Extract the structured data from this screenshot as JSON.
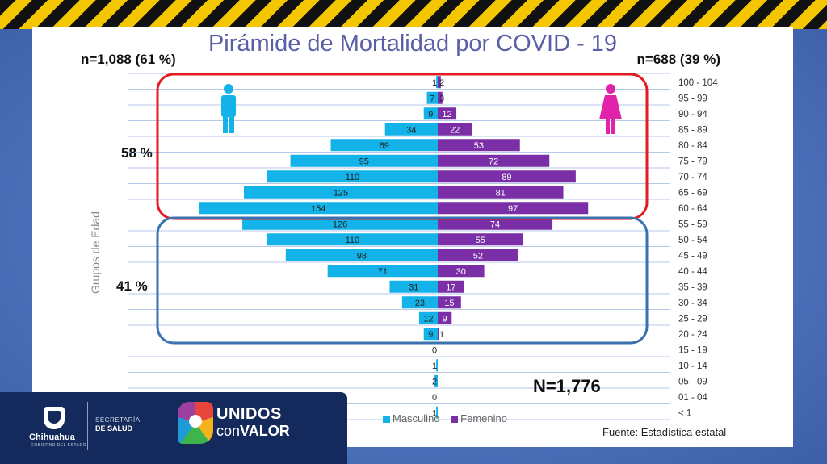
{
  "title": "Pirámide de Mortalidad por COVID - 19",
  "n_left": "n=1,088 (61 %)",
  "n_right": "n=688 (39 %)",
  "pct_upper": "58 %",
  "pct_lower": "41 %",
  "total": "N=1,776",
  "source": "Fuente: Estadística estatal",
  "colors": {
    "masculino": "#13b2e8",
    "femenino": "#7a2fa6",
    "red_box": "#e31b23",
    "blue_box": "#3a72b0",
    "male_icon": "#13b2e8",
    "female_icon": "#e023a8"
  },
  "icons": {
    "left": "male-icon",
    "right": "female-icon"
  },
  "footer": {
    "org": "Chihuahua",
    "org_sub": "GOBIERNO DEL ESTADO",
    "dept_line1": "SECRETARÍA",
    "dept_line2": "DE SALUD",
    "brand_line1": "UNIDOS",
    "brand_con": "con",
    "brand_valor": "VALOR"
  },
  "chart_data": {
    "type": "bar",
    "orientation": "horizontal-population-pyramid",
    "ylabel": "Grupos de Edad",
    "categories": [
      "100 - 104",
      "95 - 99",
      "90 - 94",
      "85 - 89",
      "80 - 84",
      "75 - 79",
      "70 - 74",
      "65 - 69",
      "60 - 64",
      "55 - 59",
      "50 - 54",
      "45 - 49",
      "40 - 44",
      "35 - 39",
      "30 - 34",
      "25 - 29",
      "20 - 24",
      "15 - 19",
      "10 - 14",
      "05 - 09",
      "01 - 04",
      "< 1"
    ],
    "series": [
      {
        "name": "Masculino",
        "values": [
          1,
          7,
          9,
          34,
          69,
          95,
          110,
          125,
          154,
          126,
          110,
          98,
          71,
          31,
          23,
          12,
          9,
          0,
          1,
          2,
          0,
          1
        ]
      },
      {
        "name": "Femenino",
        "values": [
          2,
          3,
          12,
          22,
          53,
          72,
          89,
          81,
          97,
          74,
          55,
          52,
          30,
          17,
          15,
          9,
          1,
          null,
          null,
          null,
          null,
          null
        ]
      }
    ],
    "grid": true,
    "legend": "bottom-center"
  }
}
